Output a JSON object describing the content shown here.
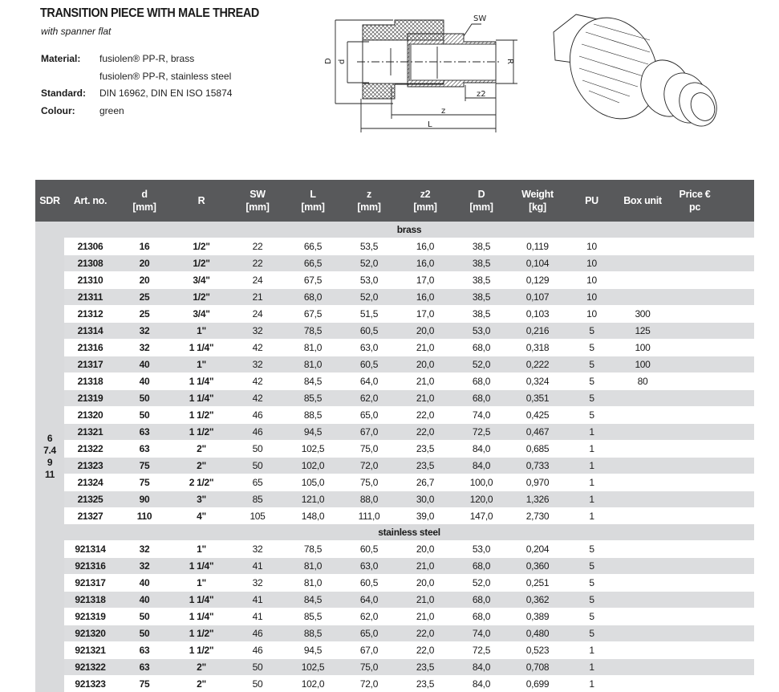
{
  "header": {
    "title": "TRANSITION PIECE WITH MALE THREAD",
    "subtitle": "with spanner flat",
    "properties": [
      {
        "label": "Material:",
        "value": "fusiolen® PP-R, brass"
      },
      {
        "label": "",
        "value": "fusiolen® PP-R, stainless steel"
      },
      {
        "label": "Standard:",
        "value": "DIN 16962, DIN EN ISO 15874"
      },
      {
        "label": "Colour:",
        "value": "green"
      }
    ]
  },
  "drawing": {
    "D": "D",
    "d": "d",
    "R": "R",
    "SW": "SW",
    "z2": "z2",
    "z": "z",
    "L": "L"
  },
  "table": {
    "columns": [
      {
        "line1": "SDR",
        "line2": ""
      },
      {
        "line1": "Art. no.",
        "line2": ""
      },
      {
        "line1": "d",
        "line2": "[mm]"
      },
      {
        "line1": "R",
        "line2": ""
      },
      {
        "line1": "SW",
        "line2": "[mm]"
      },
      {
        "line1": "L",
        "line2": "[mm]"
      },
      {
        "line1": "z",
        "line2": "[mm]"
      },
      {
        "line1": "z2",
        "line2": "[mm]"
      },
      {
        "line1": "D",
        "line2": "[mm]"
      },
      {
        "line1": "Weight",
        "line2": "[kg]"
      },
      {
        "line1": "PU",
        "line2": ""
      },
      {
        "line1": "Box unit",
        "line2": ""
      },
      {
        "line1": "Price €",
        "line2": "pc"
      }
    ],
    "sdr": [
      "6",
      "7.4",
      "9",
      "11"
    ],
    "groups": [
      {
        "name": "brass",
        "rows": [
          [
            "21306",
            "16",
            "1/2\"",
            "22",
            "66,5",
            "53,5",
            "16,0",
            "38,5",
            "0,119",
            "10",
            "",
            ""
          ],
          [
            "21308",
            "20",
            "1/2\"",
            "22",
            "66,5",
            "52,0",
            "16,0",
            "38,5",
            "0,104",
            "10",
            "",
            ""
          ],
          [
            "21310",
            "20",
            "3/4\"",
            "24",
            "67,5",
            "53,0",
            "17,0",
            "38,5",
            "0,129",
            "10",
            "",
            ""
          ],
          [
            "21311",
            "25",
            "1/2\"",
            "21",
            "68,0",
            "52,0",
            "16,0",
            "38,5",
            "0,107",
            "10",
            "",
            ""
          ],
          [
            "21312",
            "25",
            "3/4\"",
            "24",
            "67,5",
            "51,5",
            "17,0",
            "38,5",
            "0,103",
            "10",
            "300",
            ""
          ],
          [
            "21314",
            "32",
            "1\"",
            "32",
            "78,5",
            "60,5",
            "20,0",
            "53,0",
            "0,216",
            "5",
            "125",
            ""
          ],
          [
            "21316",
            "32",
            "1 1/4\"",
            "42",
            "81,0",
            "63,0",
            "21,0",
            "68,0",
            "0,318",
            "5",
            "100",
            ""
          ],
          [
            "21317",
            "40",
            "1\"",
            "32",
            "81,0",
            "60,5",
            "20,0",
            "52,0",
            "0,222",
            "5",
            "100",
            ""
          ],
          [
            "21318",
            "40",
            "1 1/4\"",
            "42",
            "84,5",
            "64,0",
            "21,0",
            "68,0",
            "0,324",
            "5",
            "80",
            ""
          ],
          [
            "21319",
            "50",
            "1 1/4\"",
            "42",
            "85,5",
            "62,0",
            "21,0",
            "68,0",
            "0,351",
            "5",
            "",
            ""
          ],
          [
            "21320",
            "50",
            "1 1/2\"",
            "46",
            "88,5",
            "65,0",
            "22,0",
            "74,0",
            "0,425",
            "5",
            "",
            ""
          ],
          [
            "21321",
            "63",
            "1 1/2\"",
            "46",
            "94,5",
            "67,0",
            "22,0",
            "72,5",
            "0,467",
            "1",
            "",
            ""
          ],
          [
            "21322",
            "63",
            "2\"",
            "50",
            "102,5",
            "75,0",
            "23,5",
            "84,0",
            "0,685",
            "1",
            "",
            ""
          ],
          [
            "21323",
            "75",
            "2\"",
            "50",
            "102,0",
            "72,0",
            "23,5",
            "84,0",
            "0,733",
            "1",
            "",
            ""
          ],
          [
            "21324",
            "75",
            "2 1/2\"",
            "65",
            "105,0",
            "75,0",
            "26,7",
            "100,0",
            "0,970",
            "1",
            "",
            ""
          ],
          [
            "21325",
            "90",
            "3\"",
            "85",
            "121,0",
            "88,0",
            "30,0",
            "120,0",
            "1,326",
            "1",
            "",
            ""
          ],
          [
            "21327",
            "110",
            "4\"",
            "105",
            "148,0",
            "111,0",
            "39,0",
            "147,0",
            "2,730",
            "1",
            "",
            ""
          ]
        ]
      },
      {
        "name": "stainless steel",
        "rows": [
          [
            "921314",
            "32",
            "1\"",
            "32",
            "78,5",
            "60,5",
            "20,0",
            "53,0",
            "0,204",
            "5",
            "",
            ""
          ],
          [
            "921316",
            "32",
            "1 1/4\"",
            "41",
            "81,0",
            "63,0",
            "21,0",
            "68,0",
            "0,360",
            "5",
            "",
            ""
          ],
          [
            "921317",
            "40",
            "1\"",
            "32",
            "81,0",
            "60,5",
            "20,0",
            "52,0",
            "0,251",
            "5",
            "",
            ""
          ],
          [
            "921318",
            "40",
            "1 1/4\"",
            "41",
            "84,5",
            "64,0",
            "21,0",
            "68,0",
            "0,362",
            "5",
            "",
            ""
          ],
          [
            "921319",
            "50",
            "1 1/4\"",
            "41",
            "85,5",
            "62,0",
            "21,0",
            "68,0",
            "0,389",
            "5",
            "",
            ""
          ],
          [
            "921320",
            "50",
            "1 1/2\"",
            "46",
            "88,5",
            "65,0",
            "22,0",
            "74,0",
            "0,480",
            "5",
            "",
            ""
          ],
          [
            "921321",
            "63",
            "1 1/2\"",
            "46",
            "94,5",
            "67,0",
            "22,0",
            "72,5",
            "0,523",
            "1",
            "",
            ""
          ],
          [
            "921322",
            "63",
            "2\"",
            "50",
            "102,5",
            "75,0",
            "23,5",
            "84,0",
            "0,708",
            "1",
            "",
            ""
          ],
          [
            "921323",
            "75",
            "2\"",
            "50",
            "102,0",
            "72,0",
            "23,5",
            "84,0",
            "0,699",
            "1",
            "",
            ""
          ]
        ]
      }
    ]
  }
}
